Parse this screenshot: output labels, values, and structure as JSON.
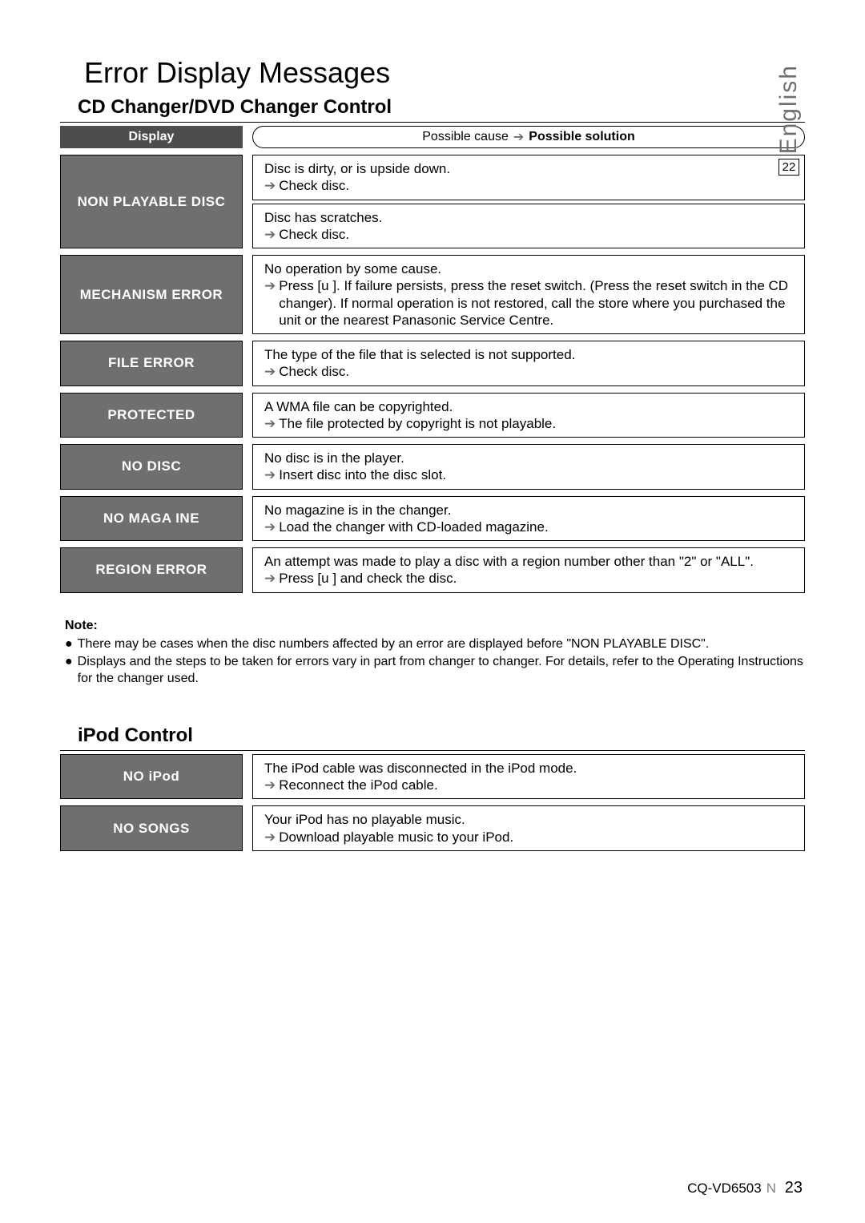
{
  "side": {
    "language": "English",
    "page_box": "22"
  },
  "title": "Error Display Messages",
  "section1": {
    "heading": "CD Changer/DVD Changer Control",
    "header_left": "Display",
    "header_cause": "Possible cause",
    "header_solution": "Possible solution",
    "rows": [
      {
        "display": "NON PLAYABLE DISC",
        "boxes": [
          {
            "cause": "Disc is dirty, or is upside down.",
            "solution": "Check disc."
          },
          {
            "cause": "Disc has scratches.",
            "solution": "Check disc."
          }
        ]
      },
      {
        "display": "MECHANISM ERROR",
        "boxes": [
          {
            "cause": "No operation by some cause.",
            "solution": "Press [u ]. If failure persists, press the reset switch. (Press the reset switch in the CD changer). If normal operation is not restored, call the store where you purchased the unit or the nearest Panasonic Service Centre."
          }
        ]
      },
      {
        "display": "FILE ERROR",
        "boxes": [
          {
            "cause": "The type of  the file that is selected is not supported.",
            "solution": "Check disc."
          }
        ]
      },
      {
        "display": "PROTECTED",
        "boxes": [
          {
            "cause": "A WMA file can be copyrighted.",
            "solution": "The file protected by copyright is not playable."
          }
        ]
      },
      {
        "display": "NO DISC",
        "boxes": [
          {
            "cause": "No disc is in the player.",
            "solution": "Insert disc into the disc slot."
          }
        ]
      },
      {
        "display": "NO MAGA  INE",
        "boxes": [
          {
            "cause": "No magazine is in the changer.",
            "solution": "Load the changer with CD-loaded magazine."
          }
        ]
      },
      {
        "display": "REGION ERROR",
        "boxes": [
          {
            "cause": "An attempt was made to play a disc with a region number other than \"2\" or \"ALL\".",
            "solution": "Press [u ] and check the disc."
          }
        ]
      }
    ]
  },
  "notes": {
    "title": "Note:",
    "items": [
      "There may be cases when the disc numbers affected by an error are displayed before \"NON PLAYABLE DISC\".",
      "Displays and the steps to be taken for errors vary in part from changer to changer. For details, refer to the Operating Instructions for the changer used."
    ]
  },
  "section2": {
    "heading": "iPod Control",
    "rows": [
      {
        "display": "NO iPod",
        "boxes": [
          {
            "cause": "The iPod cable was disconnected in the iPod mode.",
            "solution": "Reconnect the iPod cable."
          }
        ]
      },
      {
        "display": "NO SONGS",
        "boxes": [
          {
            "cause": "Your iPod has no playable music.",
            "solution": "Download playable music to your iPod."
          }
        ]
      }
    ]
  },
  "footer": {
    "model": "CQ-VD6503",
    "suffix": "N",
    "page": "23"
  },
  "colors": {
    "header_bg": "#4d4d4d",
    "row_label_bg": "#6f6f6f",
    "text": "#000000",
    "arrow_gray": "#6f6f6f"
  }
}
